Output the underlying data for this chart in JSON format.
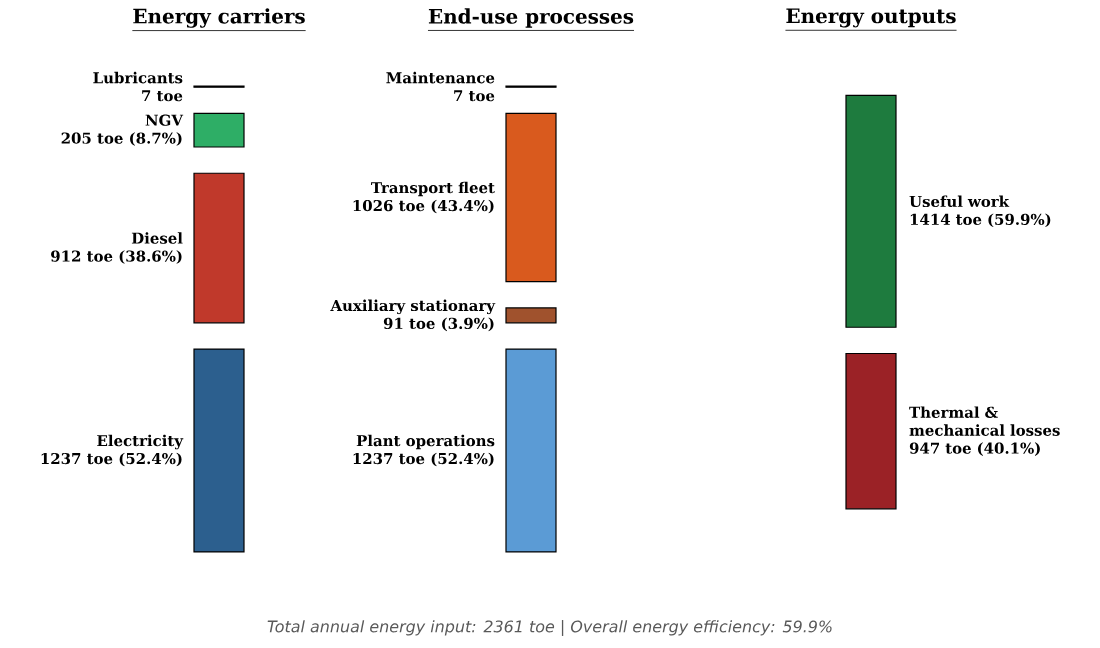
{
  "chart_data": {
    "type": "other",
    "categories": [
      "Lubricants",
      "NGV",
      "Diesel",
      "Electricity",
      "Maintenance",
      "Transport fleet",
      "Auxiliary stationary",
      "Plant operations",
      "Useful work",
      "Thermal & mechanical losses"
    ],
    "series": [
      {
        "name": "Energy carriers",
        "values": [
          7,
          205,
          912,
          1237,
          null,
          null,
          null,
          null,
          null,
          null
        ],
        "colors": [
          "#222222",
          "#2eae66",
          "#c0392b",
          "#2c5f8e",
          null,
          null,
          null,
          null,
          null,
          null
        ],
        "value_labels": [
          "7 toe",
          "205 toe (8.7%)",
          "912 toe (38.6%)",
          "1237 toe (52.4%)",
          null,
          null,
          null,
          null,
          null,
          null
        ]
      },
      {
        "name": "End-use processes",
        "values": [
          null,
          null,
          null,
          null,
          7,
          1026,
          91,
          1237,
          null,
          null
        ],
        "colors": [
          null,
          null,
          null,
          null,
          "#222222",
          "#d95a1e",
          "#a0522d",
          "#5b9bd5",
          null,
          null
        ],
        "value_labels": [
          null,
          null,
          null,
          null,
          "7 toe",
          "1026 toe (43.4%)",
          "91 toe (3.9%)",
          "1237 toe (52.4%)",
          null,
          null
        ]
      },
      {
        "name": "Energy outputs",
        "values": [
          null,
          null,
          null,
          null,
          null,
          null,
          null,
          null,
          1414,
          947
        ],
        "colors": [
          null,
          null,
          null,
          null,
          null,
          null,
          null,
          null,
          "#1e7b3e",
          "#9b2226"
        ],
        "value_labels": [
          null,
          null,
          null,
          null,
          null,
          null,
          null,
          null,
          "1414 toe (59.9%)",
          "947 toe (40.1%)"
        ]
      }
    ],
    "annotations": [
      "Total annual energy input: 2361 toe   |   Overall energy efficiency: 59.9%"
    ]
  }
}
